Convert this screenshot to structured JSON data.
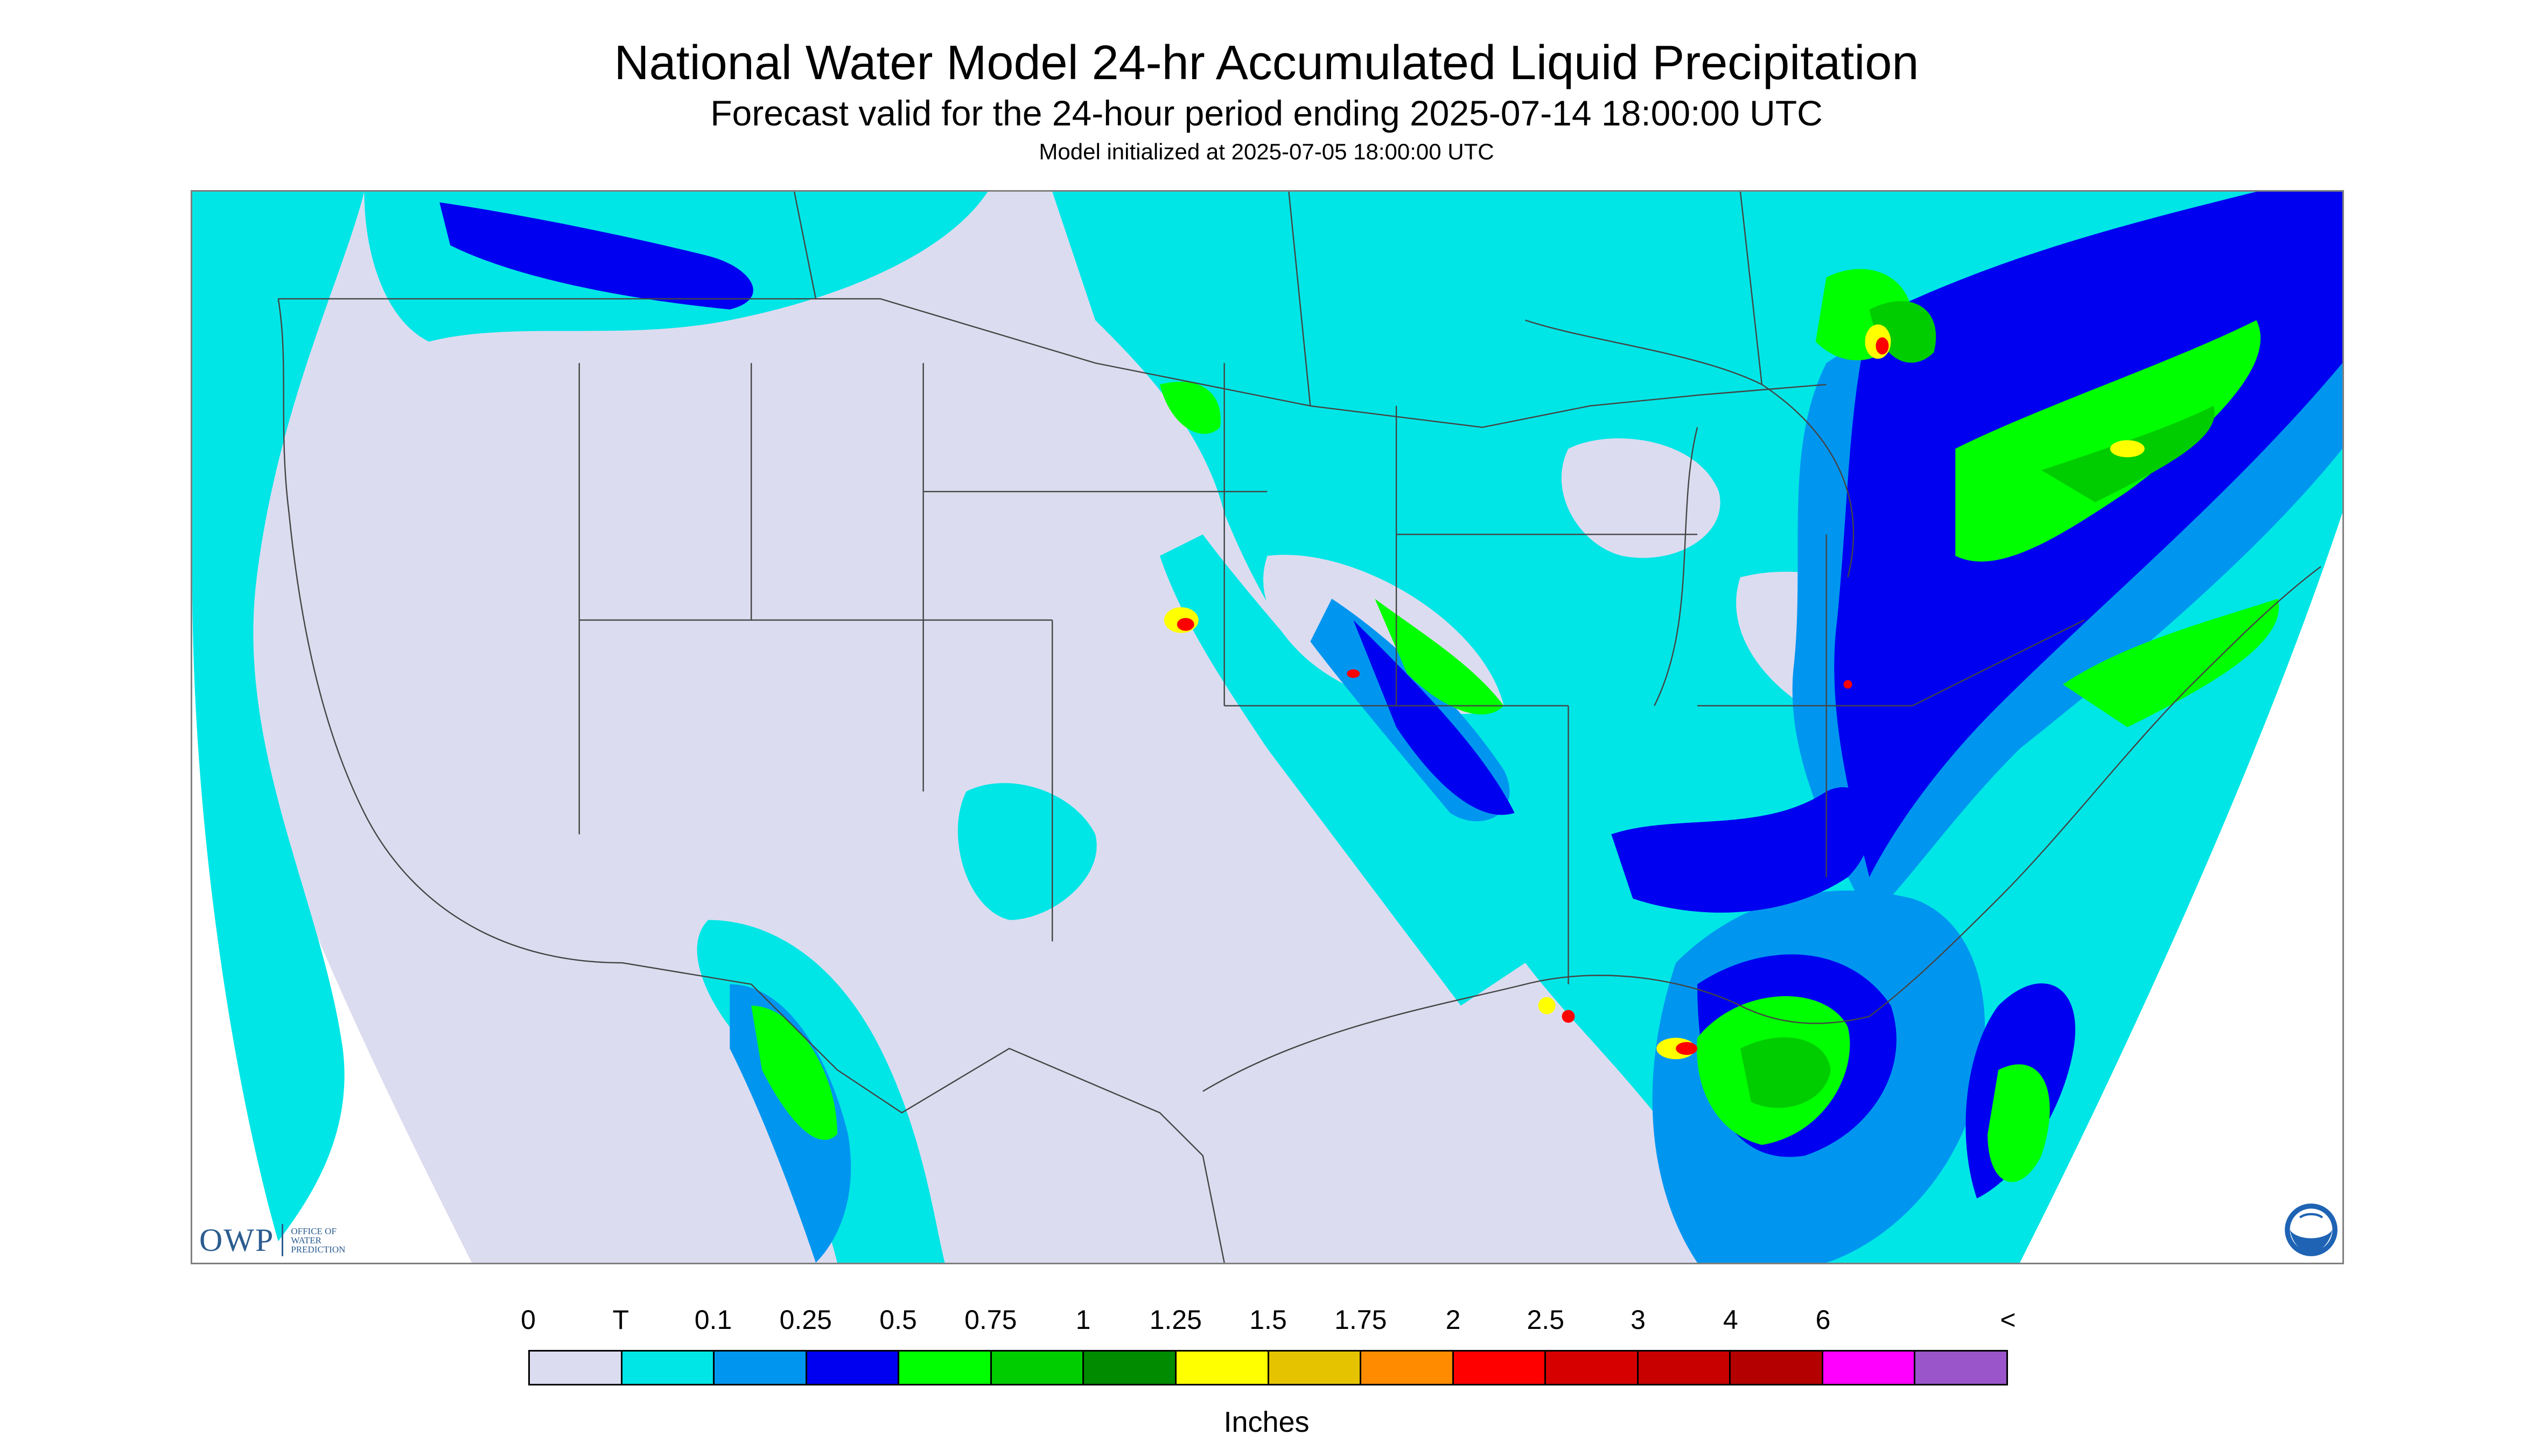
{
  "header": {
    "title": "National Water Model 24-hr Accumulated Liquid Precipitation",
    "subtitle": "Forecast valid for the 24-hour period ending 2025-07-14 18:00:00 UTC",
    "init": "Model initialized at 2025-07-05 18:00:00 UTC"
  },
  "logos": {
    "owp_abbrev": "OWP",
    "owp_line1": "OFFICE OF",
    "owp_line2": "WATER",
    "owp_line3": "PREDICTION",
    "noaa_text": "NOAA"
  },
  "legend": {
    "tick_labels": [
      "0",
      "T",
      "0.1",
      "0.25",
      "0.5",
      "0.75",
      "1",
      "1.25",
      "1.5",
      "1.75",
      "2",
      "2.5",
      "3",
      "4",
      "6",
      "<"
    ],
    "colors": [
      "#dcdcf0",
      "#00e6e6",
      "#0096f0",
      "#0000f0",
      "#00ff00",
      "#00cd00",
      "#008b00",
      "#ffff00",
      "#e6c300",
      "#ff8c00",
      "#ff0000",
      "#d70000",
      "#c80000",
      "#b40000",
      "#ff00ff",
      "#9955c9"
    ],
    "units": "Inches"
  },
  "map_colors": {
    "no_precip": "#dcdcf0",
    "trace": "#00e6e6",
    "light": "#0096f0",
    "moderate": "#0000f0",
    "green": "#00ff00",
    "green_mid": "#00cd00",
    "green_dark": "#008b00",
    "yellow": "#ffff00",
    "orange": "#ff8c00",
    "red": "#ff0000",
    "border": "#444444"
  }
}
